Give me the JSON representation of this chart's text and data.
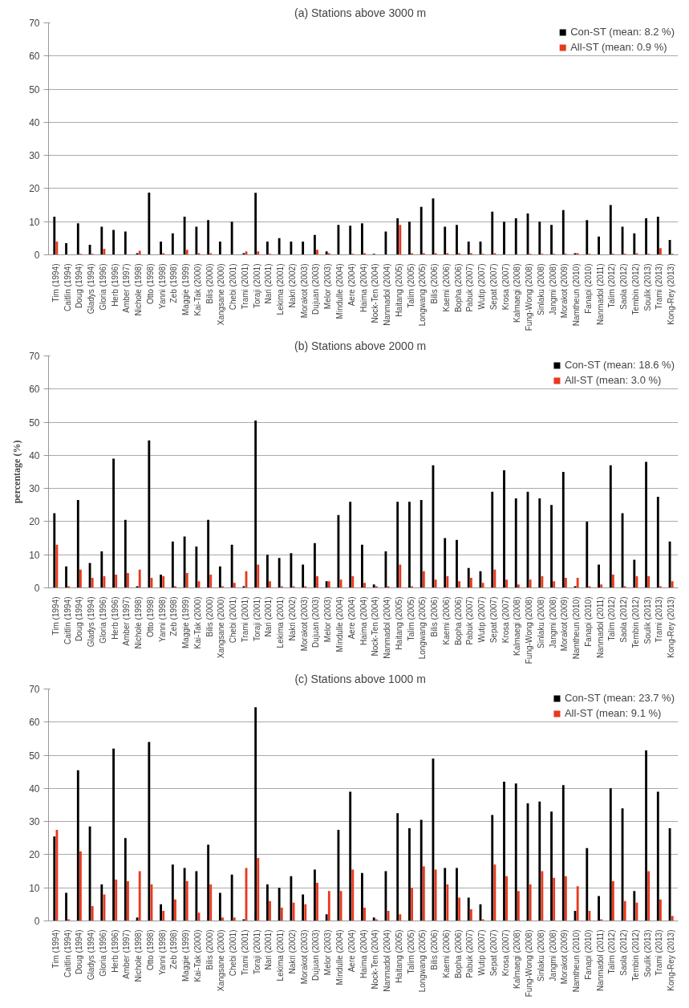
{
  "chart_data": [
    {
      "type": "bar",
      "title": "(a)   Stations above 3000 m",
      "categories": [
        "Tim (1994)",
        "Caitlin (1994)",
        "Doug (1994)",
        "Gladys (1994)",
        "Gloria (1996)",
        "Herb (1996)",
        "Amber (1997)",
        "Nichole (1998)",
        "Otto (1998)",
        "Yanni (1998)",
        "Zeb (1998)",
        "Maggie (1999)",
        "Kai-Tak (2000)",
        "Bilis (2000)",
        "Xangsane (2000)",
        "Chebi (2001)",
        "Trami (2001)",
        "Toraji (2001)",
        "Nari (2001)",
        "Lekima (2001)",
        "Nakri (2002)",
        "Morakot (2003)",
        "Dujuan (2003)",
        "Melor (2003)",
        "Mindulle (2004)",
        "Aere (2004)",
        "Haima (2004)",
        "Nock-Ten (2004)",
        "Nanmadol (2004)",
        "Haitang (2005)",
        "Talim (2005)",
        "Longwang (2005)",
        "Bilis (2006)",
        "Kaemi (2006)",
        "Bopha (2006)",
        "Pabuk (2007)",
        "Wutip (2007)",
        "Sepat (2007)",
        "Krosa (2007)",
        "Kalmaegi (2008)",
        "Fung-Wong (2008)",
        "Sinlaku (2008)",
        "Jangmi (2008)",
        "Morakot (2009)",
        "Namtheun (2010)",
        "Fanapi (2010)",
        "Nanmadol (2011)",
        "Talim (2012)",
        "Saola (2012)",
        "Tembin (2012)",
        "Soulik (2013)",
        "Trami (2013)",
        "Kong-Rey (2013)"
      ],
      "series": [
        {
          "name": "Con-ST (mean: 8.2 %)",
          "color": "#000000",
          "values": [
            11.5,
            3.5,
            9.5,
            3,
            8.5,
            7.5,
            7,
            0.5,
            18.8,
            4,
            6.5,
            11.5,
            8.5,
            10.5,
            4,
            10,
            0.5,
            18.7,
            4,
            5,
            4,
            4,
            6,
            1,
            9,
            8.8,
            9.5,
            0.3,
            7,
            11,
            10,
            14.5,
            17,
            8.5,
            9,
            4,
            4,
            13,
            10,
            11,
            12.5,
            10,
            9,
            13.5,
            0.5,
            10.5,
            5.5,
            15,
            8.5,
            6.5,
            11,
            11.5,
            4.5
          ]
        },
        {
          "name": "All-ST (mean: 0.9 %)",
          "color": "#e8391e",
          "values": [
            4,
            0,
            0.3,
            0.3,
            1.8,
            0,
            0,
            1.2,
            null,
            0.5,
            0,
            1.5,
            0.5,
            0.5,
            0,
            0,
            1,
            1,
            0.3,
            0,
            0,
            0,
            1.5,
            0.5,
            null,
            0.3,
            0.5,
            0,
            0,
            9,
            0.5,
            0.5,
            0.5,
            0.5,
            0.5,
            0.5,
            0.3,
            0.5,
            0,
            0,
            0.3,
            0.3,
            0.3,
            0.3,
            0.5,
            0.3,
            0,
            0.3,
            0.3,
            0.5,
            0.3,
            2,
            0.3
          ]
        }
      ],
      "ylim": [
        0,
        70
      ],
      "yticks": [
        0,
        10,
        20,
        30,
        40,
        50,
        60,
        70
      ],
      "grid": "y",
      "legend": "top right"
    },
    {
      "type": "bar",
      "title": "(b)   Stations above 2000 m",
      "ylabel": "percentage (%)",
      "categories": [
        "Tim (1994)",
        "Caitlin (1994)",
        "Doug (1994)",
        "Gladys (1994)",
        "Gloria (1996)",
        "Herb (1996)",
        "Amber (1997)",
        "Nichole (1998)",
        "Otto (1998)",
        "Yanni (1998)",
        "Zeb (1998)",
        "Maggie (1999)",
        "Kai-Tak (2000)",
        "Bilis (2000)",
        "Xangsane (2000)",
        "Chebi (2001)",
        "Trami (2001)",
        "Toraji (2001)",
        "Nari (2001)",
        "Lekima (2001)",
        "Nakri (2002)",
        "Morakot (2003)",
        "Dujuan (2003)",
        "Melor (2003)",
        "Mindulle (2004)",
        "Aere (2004)",
        "Haima (2004)",
        "Nock-Ten (2004)",
        "Nanmadol (2004)",
        "Haitang (2005)",
        "Talim (2005)",
        "Longwang (2005)",
        "Bilis (2006)",
        "Kaemi (2006)",
        "Bopha (2006)",
        "Pabuk (2007)",
        "Wutip (2007)",
        "Sepat (2007)",
        "Krosa (2007)",
        "Kalmaegi (2008)",
        "Fung-Wong (2008)",
        "Sinlaku (2008)",
        "Jangmi (2008)",
        "Morakot (2009)",
        "Namtheun (2010)",
        "Fanapi (2010)",
        "Nanmadol (2011)",
        "Talim (2012)",
        "Saola (2012)",
        "Tembin (2012)",
        "Soulik (2013)",
        "Trami (2013)",
        "Kong-Rey (2013)"
      ],
      "series": [
        {
          "name": "Con-ST (mean: 18.6 %)",
          "color": "#000000",
          "values": [
            22.5,
            6.5,
            26.5,
            7.5,
            11,
            39,
            20.5,
            0.5,
            44.5,
            4,
            14,
            15.5,
            12.5,
            20.5,
            6.5,
            13,
            0.5,
            50.5,
            10,
            9,
            10.5,
            7,
            13.5,
            2,
            22,
            26,
            13,
            1,
            11,
            26,
            26,
            26.5,
            37,
            15,
            14.5,
            6,
            5,
            29,
            35.5,
            27,
            29,
            27,
            25,
            35,
            0.5,
            20,
            7,
            37,
            22.5,
            8.5,
            38,
            27.5,
            14
          ]
        },
        {
          "name": "All-ST (mean: 3.0 %)",
          "color": "#e8391e",
          "values": [
            13,
            0.5,
            5.5,
            3,
            3.5,
            4,
            4.5,
            5.5,
            3,
            3.5,
            0.5,
            4.5,
            2,
            4,
            0.5,
            1.5,
            5,
            7,
            2,
            0.5,
            0.5,
            0.5,
            3.5,
            2,
            2.5,
            3.5,
            1.5,
            0.5,
            0.5,
            7,
            0.5,
            5,
            2.5,
            3.5,
            2,
            3,
            1.5,
            5.5,
            2.5,
            1,
            2.5,
            3.5,
            2,
            3,
            3,
            0.5,
            1,
            4,
            0.5,
            3.5,
            3.5,
            0.5,
            2
          ]
        }
      ],
      "ylim": [
        0,
        70
      ],
      "yticks": [
        0,
        10,
        20,
        30,
        40,
        50,
        60,
        70
      ],
      "grid": "y",
      "legend": "top right"
    },
    {
      "type": "bar",
      "title": "(c)   Stations above 1000 m",
      "categories": [
        "Tim (1994)",
        "Caitlin (1994)",
        "Doug (1994)",
        "Gladys (1994)",
        "Gloria (1996)",
        "Herb (1996)",
        "Amber (1997)",
        "Nichole (1998)",
        "Otto (1998)",
        "Yanni (1998)",
        "Zeb (1998)",
        "Maggie (1999)",
        "Kai-Tak (2000)",
        "Bilis (2000)",
        "Xangsane (2000)",
        "Chebi (2001)",
        "Trami (2001)",
        "Toraji (2001)",
        "Nari (2001)",
        "Lekima (2001)",
        "Nakri (2002)",
        "Morakot (2003)",
        "Dujuan (2003)",
        "Melor (2003)",
        "Mindulle (2004)",
        "Aere (2004)",
        "Haima (2004)",
        "Nock-Ten (2004)",
        "Nanmadol (2004)",
        "Haitang (2005)",
        "Talim (2005)",
        "Longwang (2005)",
        "Bilis (2006)",
        "Kaemi (2006)",
        "Bopha (2006)",
        "Pabuk (2007)",
        "Wutip (2007)",
        "Sepat (2007)",
        "Krosa (2007)",
        "Kalmaegi (2008)",
        "Fung-Wong (2008)",
        "Sinlaku (2008)",
        "Jangmi (2008)",
        "Morakot (2009)",
        "Namtheun (2010)",
        "Fanapi (2010)",
        "Nanmadol (2011)",
        "Talim (2012)",
        "Saola (2012)",
        "Tembin (2012)",
        "Soulik (2013)",
        "Trami (2013)",
        "Kong-Rey (2013)"
      ],
      "series": [
        {
          "name": "Con-ST (mean: 23.7 %)",
          "color": "#000000",
          "values": [
            25.5,
            8.5,
            45.5,
            28.5,
            11,
            52,
            25,
            1,
            54,
            5,
            17,
            16,
            15,
            23,
            8.5,
            14,
            0.5,
            64.5,
            11,
            10,
            13.5,
            8,
            15.5,
            2,
            27.5,
            39,
            14.5,
            1,
            15,
            32.5,
            28,
            30.5,
            49,
            16,
            16,
            7,
            5,
            32,
            42,
            41.5,
            35.5,
            36,
            33,
            41,
            3,
            22,
            7.5,
            40,
            34,
            9,
            51.5,
            39,
            28
          ]
        },
        {
          "name": "All-ST (mean: 9.1 %)",
          "color": "#e8391e",
          "values": [
            27.5,
            0.5,
            21,
            4.5,
            8,
            12.5,
            12,
            15,
            11,
            3,
            6.5,
            12,
            2.5,
            11,
            1,
            1,
            16,
            19,
            6,
            4,
            5.5,
            5,
            11.5,
            9,
            9,
            15.5,
            4,
            0.5,
            3,
            2,
            10,
            16.5,
            15.5,
            11,
            7,
            3.5,
            0.5,
            17,
            13.5,
            9,
            11,
            15,
            13,
            13.5,
            10.5,
            3,
            0.5,
            12,
            6,
            5.5,
            15,
            6.5,
            1.5
          ]
        }
      ],
      "ylim": [
        0,
        70
      ],
      "yticks": [
        0,
        10,
        20,
        30,
        40,
        50,
        60,
        70
      ],
      "grid": "y",
      "legend": "top right"
    }
  ]
}
